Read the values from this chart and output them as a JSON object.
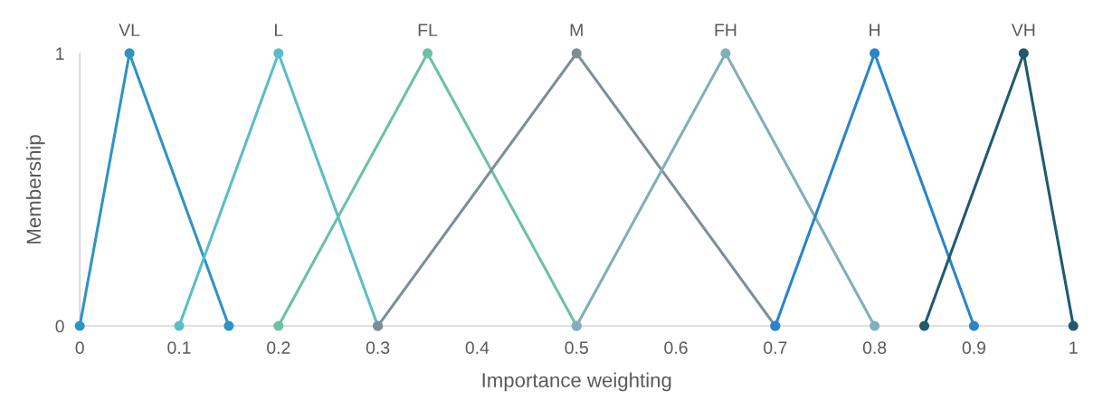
{
  "chart_data": {
    "type": "line",
    "xlabel": "Importance weighting",
    "ylabel": "Membership",
    "xlim": [
      0,
      1
    ],
    "ylim": [
      0,
      1
    ],
    "xticks": [
      0,
      0.1,
      0.2,
      0.3,
      0.4,
      0.5,
      0.6,
      0.7,
      0.8,
      0.9,
      1
    ],
    "yticks": [
      0,
      1
    ],
    "grid": false,
    "legend": false,
    "marker": "circle",
    "line_style": "solid",
    "series": [
      {
        "name": "VL",
        "color": "#2f93c4",
        "x": [
          0,
          0.05,
          0.15
        ],
        "values": [
          0,
          1,
          0
        ]
      },
      {
        "name": "L",
        "color": "#5bbdc8",
        "x": [
          0.1,
          0.2,
          0.3
        ],
        "values": [
          0,
          1,
          0
        ]
      },
      {
        "name": "FL",
        "color": "#6cc1a5",
        "x": [
          0.2,
          0.35,
          0.5
        ],
        "values": [
          0,
          1,
          0
        ]
      },
      {
        "name": "M",
        "color": "#7b8f95",
        "x": [
          0.3,
          0.5,
          0.7
        ],
        "values": [
          0,
          1,
          0
        ]
      },
      {
        "name": "FH",
        "color": "#80afbb",
        "x": [
          0.5,
          0.65,
          0.8
        ],
        "values": [
          0,
          1,
          0
        ]
      },
      {
        "name": "H",
        "color": "#2a84cc",
        "x": [
          0.7,
          0.8,
          0.9
        ],
        "values": [
          0,
          1,
          0
        ]
      },
      {
        "name": "VH",
        "color": "#1f5a70",
        "x": [
          0.85,
          0.95,
          1
        ],
        "values": [
          0,
          1,
          0
        ]
      }
    ]
  }
}
